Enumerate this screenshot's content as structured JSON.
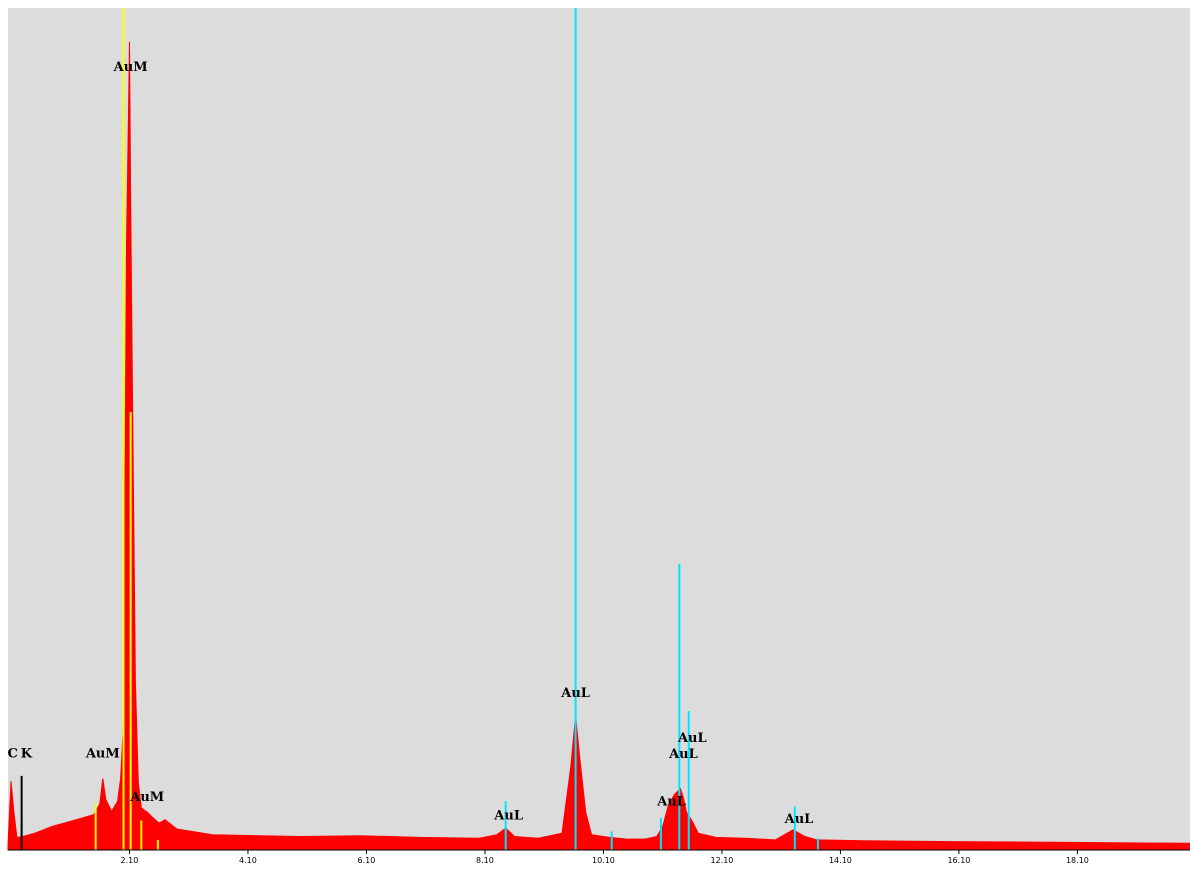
{
  "chart_data": {
    "type": "area",
    "title": "",
    "xlabel": "",
    "ylabel": "",
    "xlim": [
      0.05,
      20.0
    ],
    "ylim": [
      0,
      100
    ],
    "x_ticks": [
      {
        "value": 2.1,
        "label": "2.10"
      },
      {
        "value": 4.1,
        "label": "4.10"
      },
      {
        "value": 6.1,
        "label": "6.10"
      },
      {
        "value": 8.1,
        "label": "8.10"
      },
      {
        "value": 10.1,
        "label": "10.10"
      },
      {
        "value": 12.1,
        "label": "12.10"
      },
      {
        "value": 14.1,
        "label": "14.10"
      },
      {
        "value": 16.1,
        "label": "16.10"
      },
      {
        "value": 18.1,
        "label": "18.10"
      }
    ],
    "colors": {
      "plot_bg": "#dcdcdc",
      "spectrum": "#ff0000",
      "au_m_lines": "#ffff00",
      "au_l_lines": "#00e5ff",
      "c_k_line": "#000000"
    },
    "spectrum": {
      "name": "",
      "x": [
        0.05,
        0.1,
        0.15,
        0.2,
        0.3,
        0.5,
        0.8,
        1.2,
        1.5,
        1.6,
        1.65,
        1.7,
        1.8,
        1.9,
        1.95,
        2.0,
        2.05,
        2.08,
        2.1,
        2.12,
        2.15,
        2.2,
        2.25,
        2.3,
        2.4,
        2.5,
        2.6,
        2.7,
        2.9,
        3.5,
        5.0,
        6.0,
        7.0,
        8.0,
        8.3,
        8.45,
        8.6,
        9.0,
        9.4,
        9.55,
        9.63,
        9.7,
        9.8,
        9.9,
        10.2,
        10.5,
        10.8,
        11.0,
        11.1,
        11.2,
        11.3,
        11.4,
        11.45,
        11.5,
        11.6,
        11.7,
        12.0,
        12.5,
        13.0,
        13.1,
        13.3,
        13.5,
        13.7,
        14.5,
        16.0,
        18.0,
        20.0
      ],
      "y": [
        0.6,
        8.2,
        4.5,
        1.5,
        1.6,
        2.0,
        2.8,
        3.6,
        4.2,
        5.5,
        8.5,
        6.0,
        4.6,
        5.8,
        8.5,
        15.0,
        72.0,
        86.0,
        96.0,
        78.0,
        55.0,
        20.0,
        8.0,
        5.0,
        4.5,
        3.8,
        3.2,
        3.6,
        2.5,
        1.8,
        1.6,
        1.7,
        1.5,
        1.4,
        1.8,
        2.6,
        1.6,
        1.4,
        2.0,
        10.0,
        16.0,
        11.0,
        4.5,
        1.8,
        1.5,
        1.3,
        1.3,
        1.6,
        2.8,
        5.4,
        6.6,
        7.3,
        6.2,
        4.5,
        3.4,
        2.0,
        1.5,
        1.4,
        1.2,
        1.6,
        2.4,
        1.6,
        1.2,
        1.1,
        1.0,
        0.9,
        0.8
      ]
    },
    "lines": {
      "au_m": [
        {
          "x": 2.0,
          "h": 100
        },
        {
          "x": 2.12,
          "h": 52
        },
        {
          "x": 1.53,
          "h": 5.5
        },
        {
          "x": 2.3,
          "h": 3.5
        },
        {
          "x": 2.58,
          "h": 1.2
        }
      ],
      "au_l": [
        {
          "x": 9.63,
          "h": 100
        },
        {
          "x": 11.38,
          "h": 34
        },
        {
          "x": 11.54,
          "h": 16.5
        },
        {
          "x": 8.45,
          "h": 5.8
        },
        {
          "x": 10.24,
          "h": 2.2
        },
        {
          "x": 11.07,
          "h": 3.8
        },
        {
          "x": 13.33,
          "h": 5.2
        },
        {
          "x": 13.72,
          "h": 1.4
        }
      ],
      "c_k": [
        {
          "x": 0.28,
          "h": 8.8
        }
      ]
    },
    "annotations": [
      {
        "text": "AuM",
        "x": 2.12,
        "y": 92.5
      },
      {
        "text": "AuM",
        "x": 1.65,
        "y": 11.0
      },
      {
        "text": "AuM",
        "x": 2.4,
        "y": 5.8
      },
      {
        "text": "AuL",
        "x": 9.63,
        "y": 18.2
      },
      {
        "text": "AuL",
        "x": 8.5,
        "y": 3.6
      },
      {
        "text": "AuL",
        "x": 11.6,
        "y": 12.8
      },
      {
        "text": "AuL",
        "x": 11.45,
        "y": 10.9
      },
      {
        "text": "AuL",
        "x": 11.25,
        "y": 5.3
      },
      {
        "text": "AuL",
        "x": 13.4,
        "y": 3.2
      },
      {
        "text": "C",
        "x": 0.13,
        "y": 11.0
      },
      {
        "text": "K",
        "x": 0.36,
        "y": 11.0
      }
    ]
  }
}
